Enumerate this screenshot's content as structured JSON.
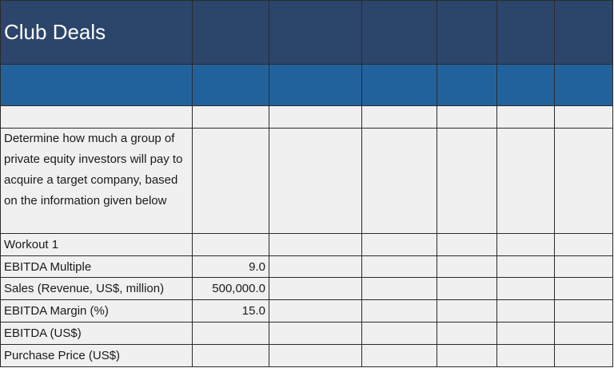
{
  "sheet": {
    "title": "Club Deals",
    "description": "Determine how much a group of private equity investors will pay to acquire a target company, based on the information given below",
    "workout_label": "Workout 1",
    "rows": [
      {
        "label": "EBITDA Multiple",
        "value": "9.0"
      },
      {
        "label": "Sales (Revenue, US$, million)",
        "value": "500,000.0"
      },
      {
        "label": "EBITDA Margin (%)",
        "value": "15.0"
      },
      {
        "label": "EBITDA (US$)",
        "value": ""
      },
      {
        "label": "Purchase Price (US$)",
        "value": ""
      }
    ]
  },
  "colors": {
    "title_bg": "#2b456b",
    "band_bg": "#22629c",
    "cell_bg": "#f0f0f0",
    "input_value": "#1a2bd8"
  }
}
